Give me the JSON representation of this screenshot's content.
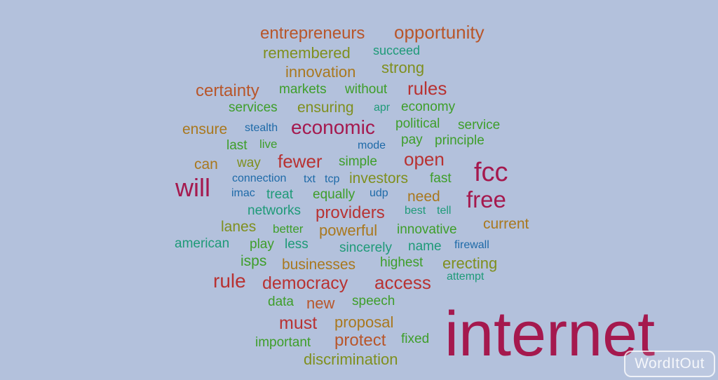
{
  "colors": {
    "background": "#b3c1dc",
    "crimson": "#a5194e",
    "red": "#b83232",
    "orange": "#b8562a",
    "ochre": "#a9781e",
    "olive": "#7f8f1e",
    "green": "#3e9e2a",
    "teal": "#1e9a78",
    "blue": "#1e6aa8"
  },
  "words": [
    {
      "text": "entrepreneurs",
      "color": "orange"
    },
    {
      "text": "opportunity",
      "color": "orange"
    },
    {
      "text": "remembered",
      "color": "olive"
    },
    {
      "text": "succeed",
      "color": "teal"
    },
    {
      "text": "innovation",
      "color": "ochre"
    },
    {
      "text": "strong",
      "color": "olive"
    },
    {
      "text": "certainty",
      "color": "orange"
    },
    {
      "text": "markets",
      "color": "green"
    },
    {
      "text": "without",
      "color": "green"
    },
    {
      "text": "rules",
      "color": "red"
    },
    {
      "text": "services",
      "color": "green"
    },
    {
      "text": "ensuring",
      "color": "olive"
    },
    {
      "text": "apr",
      "color": "teal"
    },
    {
      "text": "economy",
      "color": "green"
    },
    {
      "text": "ensure",
      "color": "ochre"
    },
    {
      "text": "stealth",
      "color": "blue"
    },
    {
      "text": "economic",
      "color": "crimson"
    },
    {
      "text": "political",
      "color": "green"
    },
    {
      "text": "service",
      "color": "green"
    },
    {
      "text": "last",
      "color": "green"
    },
    {
      "text": "live",
      "color": "green"
    },
    {
      "text": "mode",
      "color": "blue"
    },
    {
      "text": "pay",
      "color": "green"
    },
    {
      "text": "principle",
      "color": "green"
    },
    {
      "text": "can",
      "color": "ochre"
    },
    {
      "text": "way",
      "color": "olive"
    },
    {
      "text": "fewer",
      "color": "red"
    },
    {
      "text": "simple",
      "color": "green"
    },
    {
      "text": "open",
      "color": "red"
    },
    {
      "text": "fcc",
      "color": "crimson"
    },
    {
      "text": "will",
      "color": "crimson"
    },
    {
      "text": "connection",
      "color": "blue"
    },
    {
      "text": "txt",
      "color": "blue"
    },
    {
      "text": "tcp",
      "color": "blue"
    },
    {
      "text": "investors",
      "color": "olive"
    },
    {
      "text": "fast",
      "color": "green"
    },
    {
      "text": "imac",
      "color": "blue"
    },
    {
      "text": "treat",
      "color": "teal"
    },
    {
      "text": "equally",
      "color": "green"
    },
    {
      "text": "udp",
      "color": "blue"
    },
    {
      "text": "need",
      "color": "ochre"
    },
    {
      "text": "free",
      "color": "crimson"
    },
    {
      "text": "networks",
      "color": "teal"
    },
    {
      "text": "providers",
      "color": "red"
    },
    {
      "text": "best",
      "color": "teal"
    },
    {
      "text": "tell",
      "color": "teal"
    },
    {
      "text": "lanes",
      "color": "olive"
    },
    {
      "text": "better",
      "color": "green"
    },
    {
      "text": "powerful",
      "color": "ochre"
    },
    {
      "text": "innovative",
      "color": "green"
    },
    {
      "text": "current",
      "color": "ochre"
    },
    {
      "text": "american",
      "color": "teal"
    },
    {
      "text": "play",
      "color": "green"
    },
    {
      "text": "less",
      "color": "teal"
    },
    {
      "text": "sincerely",
      "color": "teal"
    },
    {
      "text": "name",
      "color": "teal"
    },
    {
      "text": "firewall",
      "color": "blue"
    },
    {
      "text": "isps",
      "color": "green"
    },
    {
      "text": "businesses",
      "color": "ochre"
    },
    {
      "text": "highest",
      "color": "green"
    },
    {
      "text": "erecting",
      "color": "olive"
    },
    {
      "text": "rule",
      "color": "red"
    },
    {
      "text": "democracy",
      "color": "red"
    },
    {
      "text": "access",
      "color": "red"
    },
    {
      "text": "attempt",
      "color": "teal"
    },
    {
      "text": "data",
      "color": "green"
    },
    {
      "text": "new",
      "color": "orange"
    },
    {
      "text": "speech",
      "color": "green"
    },
    {
      "text": "must",
      "color": "red"
    },
    {
      "text": "proposal",
      "color": "ochre"
    },
    {
      "text": "internet",
      "color": "crimson"
    },
    {
      "text": "important",
      "color": "green"
    },
    {
      "text": "protect",
      "color": "orange"
    },
    {
      "text": "fixed",
      "color": "green"
    },
    {
      "text": "discrimination",
      "color": "olive"
    }
  ],
  "watermark": {
    "text": "WordItOut"
  }
}
